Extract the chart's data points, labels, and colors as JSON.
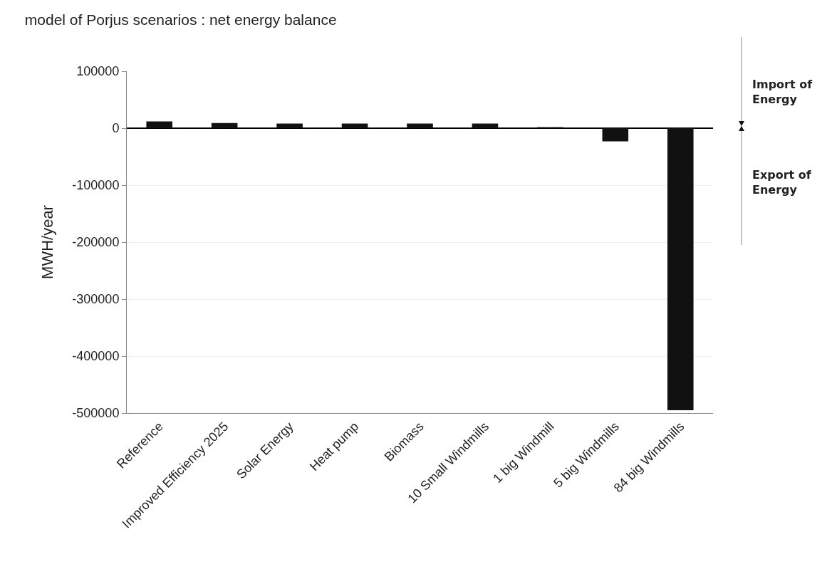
{
  "chart_data": {
    "type": "bar",
    "title": "model of Porjus scenarios : net energy balance",
    "ylabel": "MWH/year",
    "categories": [
      "Reference",
      "Improved Efficiency 2025",
      "Solar Energy",
      "Heat pump",
      "Biomass",
      "10 Small Windmills",
      "1 big Windmill",
      "5 big Windmills",
      "84 big Windmills"
    ],
    "values": [
      12000,
      9000,
      8000,
      8000,
      8000,
      8000,
      2000,
      -23000,
      -495000
    ],
    "color": "#111111",
    "ylim": [
      -500000,
      100000
    ],
    "yticks": [
      -500000,
      -400000,
      -300000,
      -200000,
      -100000,
      0,
      100000
    ],
    "grid": true,
    "annotations": [
      "Import of Energy",
      "Export of Energy"
    ]
  }
}
